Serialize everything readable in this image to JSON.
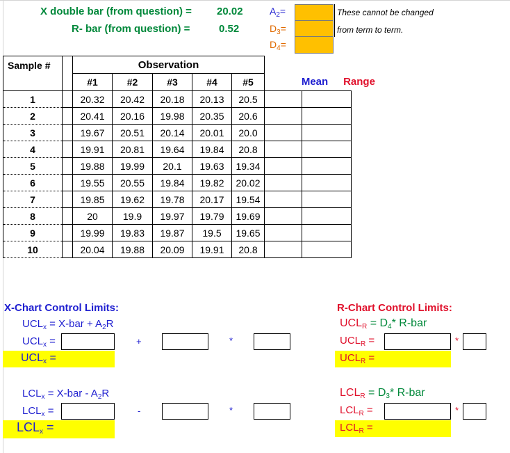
{
  "header": {
    "xdbar_label": "X double bar (from question) =",
    "xdbar_value": "20.02",
    "rbar_label": "R- bar (from question) =",
    "rbar_value": "0.52",
    "a2_main": "A",
    "a2_sub": "2",
    "d3_main": "D",
    "d3_sub": "3",
    "d4_main": "D",
    "d4_sub": "4",
    "eq": "=",
    "note_line1": "These cannot be changed",
    "note_line2": "from term to term."
  },
  "table": {
    "sample_header": "Sample #",
    "observation_header": "Observation",
    "obs_cols": [
      "#1",
      "#2",
      "#3",
      "#4",
      "#5"
    ],
    "mean_header": "Mean",
    "range_header": "Range",
    "rows": [
      {
        "sample": "1",
        "obs": [
          "20.32",
          "20.42",
          "20.18",
          "20.13",
          "20.5"
        ]
      },
      {
        "sample": "2",
        "obs": [
          "20.41",
          "20.16",
          "19.98",
          "20.35",
          "20.6"
        ]
      },
      {
        "sample": "3",
        "obs": [
          "19.67",
          "20.51",
          "20.14",
          "20.01",
          "20.0"
        ]
      },
      {
        "sample": "4",
        "obs": [
          "19.91",
          "20.81",
          "19.64",
          "19.84",
          "20.8"
        ]
      },
      {
        "sample": "5",
        "obs": [
          "19.88",
          "19.99",
          "20.1",
          "19.63",
          "19.34"
        ]
      },
      {
        "sample": "6",
        "obs": [
          "19.55",
          "20.55",
          "19.84",
          "19.82",
          "20.02"
        ]
      },
      {
        "sample": "7",
        "obs": [
          "19.85",
          "19.62",
          "19.78",
          "20.17",
          "19.54"
        ]
      },
      {
        "sample": "8",
        "obs": [
          "20",
          "19.9",
          "19.97",
          "19.79",
          "19.69"
        ]
      },
      {
        "sample": "9",
        "obs": [
          "19.99",
          "19.83",
          "19.87",
          "19.5",
          "19.65"
        ]
      },
      {
        "sample": "10",
        "obs": [
          "20.04",
          "19.88",
          "20.09",
          "19.91",
          "20.8"
        ]
      }
    ]
  },
  "xchart": {
    "title": "X-Chart Control Limits:",
    "ucl_main": "UCL",
    "ucl_sub": "x",
    "lcl_main": "LCL",
    "lcl_sub": "x",
    "ucl_formula_rest": " = X-bar + A",
    "ucl_formula_sub": "2",
    "ucl_formula_end": "R",
    "lcl_formula_rest": " = X-bar - A",
    "lcl_formula_sub": "2",
    "lcl_formula_end": "R",
    "eq": " =",
    "plus": "+",
    "minus": "-",
    "times": "*"
  },
  "rchart": {
    "title": "R-Chart Control Limits:",
    "ucl_main": "UCL",
    "ucl_sub": "R",
    "lcl_main": "LCL",
    "lcl_sub": "R",
    "ucl_formula_mid": " = D",
    "ucl_formula_sub": "4",
    "ucl_formula_end": "* R-bar",
    "lcl_formula_mid": " = D",
    "lcl_formula_sub": "3",
    "lcl_formula_end": "* R-bar",
    "eq": " =",
    "times": "*"
  }
}
